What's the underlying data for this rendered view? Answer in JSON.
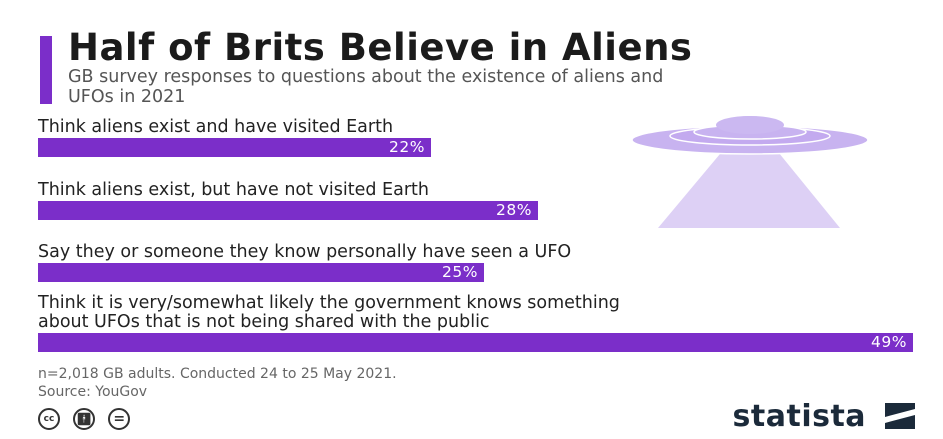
{
  "title": "Half of Brits Believe in Aliens",
  "subtitle": "GB survey responses to questions about the existence of aliens and UFOs in 2021",
  "colors": {
    "accent": "#7b2ec9",
    "ufo_body": "#c8b3f0",
    "ufo_beam": "#ddd0f5"
  },
  "chart_data": {
    "type": "bar",
    "orientation": "horizontal",
    "categories": [
      "Think aliens exist and have visited Earth",
      "Think aliens exist, but have not visited Earth",
      "Say they or someone they know personally have seen a UFO",
      "Think it is very/somewhat likely the government knows something about UFOs that is not being shared with the public"
    ],
    "values": [
      22,
      28,
      25,
      49
    ],
    "value_labels": [
      "22%",
      "28%",
      "25%",
      "49%"
    ],
    "unit": "%",
    "xlim": [
      0,
      49
    ],
    "grid": false
  },
  "footnote": {
    "line1": "n=2,018 GB adults. Conducted 24 to 25 May 2021.",
    "line2": "Source: YouGov"
  },
  "license_icons": [
    "cc-icon",
    "attribution-icon",
    "no-derivatives-icon"
  ],
  "brand": "statista"
}
